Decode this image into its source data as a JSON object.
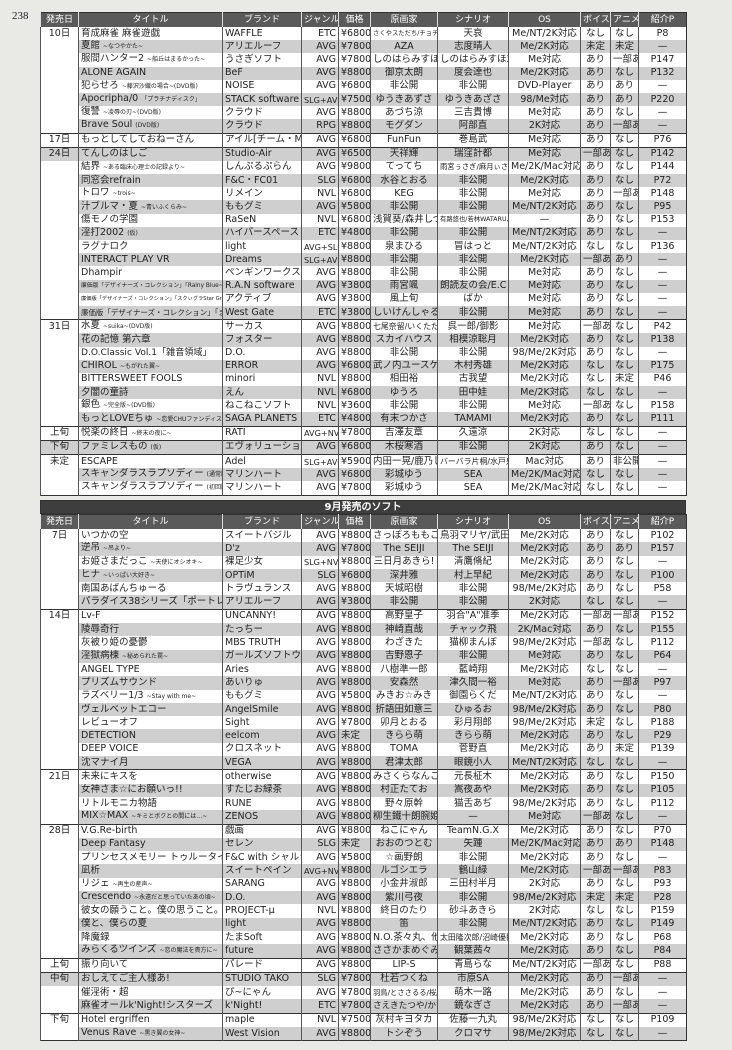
{
  "page_number": "238",
  "columns": [
    "発売日",
    "タイトル",
    "ブランド",
    "ジャンル",
    "価格",
    "原画家",
    "シナリオ",
    "OS",
    "ボイス",
    "アニメ",
    "紹介P"
  ],
  "section2_title": "9月発売のソフト",
  "table1": {
    "rows": [
      [
        "10日",
        "育成麻雀 麻雀遊戯",
        "",
        "WAFFLE",
        "ETC",
        "¥6800",
        "さくやスただち/チョチョポリス",
        "天哀",
        "Me/NT/2K対応",
        "なし",
        "なし",
        "P8"
      ],
      [
        "",
        "夏館",
        "~なつやかた~",
        "アリエルーフ",
        "AVG",
        "¥7800",
        "AZA",
        "志度晴人",
        "Me/2K対応",
        "未定",
        "未定",
        "—"
      ],
      [
        "",
        "服間ハンター2",
        "~船丘はまるかった~",
        "うさぎソフト",
        "AVG",
        "¥7800",
        "しのはらみすほ4号",
        "しのはらみすほ2号",
        "Me対応",
        "あり",
        "一部あり",
        "P147"
      ],
      [
        "",
        "ALONE AGAIN",
        "",
        "BeF",
        "AVG",
        "¥8800",
        "御京太朗",
        "度会達也",
        "Me/2K対応",
        "あり",
        "なし",
        "P132"
      ],
      [
        "",
        "犯らせろ",
        "~藤沢沙織の場合~(DVD版)",
        "NOISE",
        "AVG",
        "¥6800",
        "非公開",
        "非公開",
        "DVD-Player",
        "あり",
        "あり",
        "—"
      ],
      [
        "",
        "Apocripha/0",
        "「プラチナディスク」",
        "STACK software",
        "SLG+AVG",
        "¥7500",
        "ゆうきあずさ",
        "ゆうきあざさ",
        "98/Me対応",
        "あり",
        "あり",
        "P220"
      ],
      [
        "",
        "復讐",
        "~凌辱の刃~(DVD版)",
        "クラウド",
        "AVG",
        "¥8800",
        "あづち涼",
        "三吉貴博",
        "Me対応",
        "あり",
        "なし",
        "—"
      ],
      [
        "",
        "Brave Soul",
        "(DVD版)",
        "クラウド",
        "RPG",
        "¥8800",
        "モグダン",
        "阿部直",
        "2K対応",
        "あり",
        "一部あり",
        "—"
      ],
      [
        "17日",
        "もっとしてしておねーさん",
        "",
        "アイル[チーム・MAXI]",
        "AVG",
        "¥6800",
        "FunFun",
        "巻島武",
        "Me対応",
        "あり",
        "なし",
        "P76"
      ],
      [
        "24日",
        "てんしのはしご",
        "",
        "Studio-Air",
        "AVG",
        "¥6500",
        "天祥輝",
        "瑞窪計都",
        "Me対応",
        "一部あり",
        "なし",
        "P142"
      ],
      [
        "",
        "結界",
        "~ある臨床心理士の記録より~",
        "しんぷるぷらん",
        "AVG",
        "¥9800",
        "てってち",
        "雨宮ぅさぎ/麻月ぃさを,他",
        "Me/2K/Mac対応",
        "あり",
        "なし",
        "P144"
      ],
      [
        "",
        "同窓会refrain",
        "",
        "F&C・FC01",
        "SLG",
        "¥6800",
        "水谷とおる",
        "非公開",
        "Me/2K対応",
        "あり",
        "なし",
        "P72"
      ],
      [
        "",
        "トロワ",
        "~trois~",
        "リメイン",
        "NVL",
        "¥6800",
        "KEG",
        "非公開",
        "Me対応",
        "あり",
        "一部あり",
        "P148"
      ],
      [
        "",
        "汁ブルマ・夏",
        "~青いふくらみ~",
        "ももグミ",
        "AVG",
        "¥5800",
        "非公開",
        "非公開",
        "Me/NT/2K対応",
        "あり",
        "なし",
        "P95"
      ],
      [
        "",
        "傷モノの学園",
        "",
        "RaSeN",
        "NVL",
        "¥6800",
        "浅賀葵/森井しづき",
        "有路悠也/若林WATARU,他",
        "—",
        "あり",
        "なし",
        "P153"
      ],
      [
        "",
        "淫打2002",
        "(仮)",
        "ハイパースペース",
        "ETC",
        "¥4800",
        "非公開",
        "非公開",
        "Me/NT/2K対応",
        "あり",
        "なし",
        "—"
      ],
      [
        "",
        "ラグナロク",
        "",
        "light",
        "AVG+SLG",
        "¥8800",
        "泉まひる",
        "冒はっと",
        "Me/NT/2K対応",
        "なし",
        "なし",
        "P136"
      ],
      [
        "",
        "INTERACT PLAY VR",
        "",
        "Dreams",
        "SLG+AVG",
        "¥8800",
        "非公開",
        "非公開",
        "Me/2K対応",
        "一部あり",
        "あり",
        "—"
      ],
      [
        "",
        "Dhampir",
        "",
        "ペンギンワークス",
        "AVG",
        "¥8800",
        "非公開",
        "非公開",
        "Me対応",
        "あり",
        "なし",
        "—"
      ],
      [
        "",
        "廉価版「デザイナーズ・コレクション」「Rainy Blue~6月の雨~」",
        "",
        "R.A.N software",
        "AVG",
        "¥3800",
        "雨宮颯",
        "朗読友の会/E.C",
        "Me対応",
        "あり",
        "なし",
        "—"
      ],
      [
        "",
        "廉価版「デザイナーズ・コレクション」「スクぃグラStar Graduation」",
        "",
        "アクティブ",
        "AVG",
        "¥3800",
        "風上旬",
        "ばか",
        "Me対応",
        "あり",
        "なし",
        "—"
      ],
      [
        "",
        "廉価版「デザイナーズ・コレクション」「まぁ烈Remix」",
        "",
        "West Gate",
        "ETC",
        "¥3800",
        "しいけんしゃる",
        "非公開",
        "Me対応",
        "あり",
        "なし",
        "—"
      ],
      [
        "31日",
        "水夏",
        "~suika~(DVD版)",
        "サーカス",
        "AVG",
        "¥8800",
        "七尾奈留/いくたたかのん",
        "呉一郎/御影",
        "Me対応",
        "一部あり",
        "なし",
        "P42"
      ],
      [
        "",
        "花の記憶 第六章",
        "",
        "フォスター",
        "AVG",
        "¥8800",
        "スカイハウス",
        "相模涼聡月",
        "Me/2K対応",
        "あり",
        "なし",
        "P138"
      ],
      [
        "",
        "D.O.Classic Vol.1「雑音領域」",
        "",
        "D.O.",
        "AVG",
        "¥8800",
        "非公開",
        "非公開",
        "98/Me/2K対応",
        "あり",
        "なし",
        "—"
      ],
      [
        "",
        "CHIROL",
        "~もがれた翼~",
        "ERROR",
        "AVG",
        "¥6800",
        "武ノ内ユースケ",
        "木村秀雄",
        "Me/2K対応",
        "なし",
        "なし",
        "P175"
      ],
      [
        "",
        "BITTERSWEET FOOLS",
        "",
        "minori",
        "NVL",
        "¥8800",
        "相田裕",
        "古我望",
        "Me/2K対応",
        "なし",
        "未定",
        "P46"
      ],
      [
        "",
        "夕闇の童詩",
        "",
        "えん",
        "NVL",
        "¥6800",
        "ゆうろ",
        "田中娃",
        "Me/2K対応",
        "なし",
        "なし",
        "—"
      ],
      [
        "",
        "銀色",
        "~完全版~(DVD版)",
        "ねこねこソフト",
        "NVL",
        "¥3600",
        "非公開",
        "非公開",
        "Me対応",
        "一部あり",
        "なし",
        "P158"
      ],
      [
        "",
        "もっとLOVEちゅ",
        "~恋愛CHUファンディスク~",
        "SAGA PLANETS",
        "ETC",
        "¥4800",
        "有末つかさ",
        "TAMAMI",
        "Me/2K対応",
        "あり",
        "なし",
        "P111"
      ],
      [
        "上旬",
        "悦楽の終日",
        "~終末の夜に~",
        "RATI",
        "AVG+NVL",
        "¥7800",
        "吉澤友章",
        "久遠涼",
        "2K対応",
        "なし",
        "なし",
        "—"
      ],
      [
        "下旬",
        "ファミレスもの",
        "(仮)",
        "エヴォリューション",
        "AVG",
        "¥6800",
        "木桜寒酒",
        "非公開",
        "2K対応",
        "あり",
        "なし",
        "—"
      ],
      [
        "未定",
        "ESCAPE",
        "",
        "Adel",
        "SLG+AVG",
        "¥5900",
        "内田一晃/鹿乃しうこ",
        "バーバラ片桐/水戸泉,他",
        "Mac対応",
        "あり",
        "非公開",
        "—"
      ],
      [
        "",
        "スキャンダラスラプソディー",
        "(通常版)",
        "マリンハート",
        "AVG",
        "¥6800",
        "彩城ゆう",
        "SEA",
        "Me/2K/Mac対応",
        "なし",
        "なし",
        "—"
      ],
      [
        "",
        "スキャンダラスラプソディー",
        "(初回版)",
        "マリンハート",
        "AVG",
        "¥7800",
        "彩城ゆう",
        "SEA",
        "Me/2K/Mac対応",
        "なし",
        "なし",
        "—"
      ]
    ]
  },
  "table2": {
    "rows": [
      [
        "7日",
        "いつかの空",
        "",
        "スイートバジル",
        "AVG",
        "¥8800",
        "さっぽろももこ",
        "鳥羽マリヤ/武田崇信",
        "Me/2K対応",
        "あり",
        "なし",
        "P102"
      ],
      [
        "",
        "逆吊",
        "~吊より~",
        "D'z",
        "AVG",
        "¥7800",
        "The SEIJI",
        "The SEIJI",
        "Me/2K対応",
        "あり",
        "あり",
        "P157"
      ],
      [
        "",
        "お姫さまだっこ",
        "~天使にオシオキ~",
        "裸足少女",
        "SLG+NVL",
        "¥8800",
        "三日月あきら!",
        "清鷹脩紀",
        "Me/2K対応",
        "あり",
        "なし",
        "—"
      ],
      [
        "",
        "ヒナ",
        "~いっぱい大好き~",
        "OPTiM",
        "SLG",
        "¥6800",
        "深井雅",
        "村上早紀",
        "Me/2K対応",
        "あり",
        "なし",
        "P100"
      ],
      [
        "",
        "南国あばんちゅーる",
        "",
        "トラヴュランス",
        "AVG",
        "¥8800",
        "天城昭樹",
        "非公開",
        "98/Me/2K対応",
        "あり",
        "なし",
        "P58"
      ],
      [
        "",
        "パラダイス38シリーズ「ポートレイト」",
        "",
        "アリエルーフ",
        "AVG",
        "¥3800",
        "非公開",
        "非公開",
        "2K対応",
        "なし",
        "なし",
        "—"
      ],
      [
        "14日",
        "Lv-F",
        "",
        "UNCANNY!",
        "AVG",
        "¥8800",
        "高野皇子",
        "羽合\"A\"准季",
        "Me/2K対応",
        "一部あり",
        "一部あり",
        "P152"
      ],
      [
        "",
        "陵辱奇行",
        "",
        "たっちー",
        "AVG",
        "¥8800",
        "神崎直哉",
        "チャック飛",
        "2K/Mac対応",
        "あり",
        "なし",
        "P155"
      ],
      [
        "",
        "灰被り姫の憂鬱",
        "",
        "MBS TRUTH",
        "AVG",
        "¥8800",
        "わざきた",
        "猫柳まんぼ",
        "98/Me/2K対応",
        "一部あり",
        "なし",
        "P112"
      ],
      [
        "",
        "淫獄病棟",
        "~秘められた罠~",
        "ガールズソフトウェア",
        "AVG",
        "¥8800",
        "吉野恩子",
        "非公開",
        "Me対応",
        "あり",
        "なし",
        "P64"
      ],
      [
        "",
        "ANGEL TYPE",
        "",
        "Aries",
        "AVG",
        "¥8800",
        "八樹準一郎",
        "藍崎翔",
        "Me/2K対応",
        "なし",
        "なし",
        "—"
      ],
      [
        "",
        "プリズムサウンド",
        "",
        "あいりゅ",
        "AVG",
        "¥8800",
        "安森然",
        "津久間一裕",
        "Me対応",
        "あり",
        "一部あり",
        "P97"
      ],
      [
        "",
        "ラズベリー1/3",
        "~Stay with me~",
        "ももグミ",
        "AVG",
        "¥5800",
        "みきお☆みき",
        "御園らくだ",
        "Me/NT/2K対応",
        "あり",
        "なし",
        "—"
      ],
      [
        "",
        "ヴェルベットエコー",
        "",
        "AngelSmile",
        "AVG",
        "¥8800",
        "折語田如意三",
        "ひゅるお",
        "98/Me/2K対応",
        "あり",
        "なし",
        "P80"
      ],
      [
        "",
        "レビューオフ",
        "",
        "Sight",
        "AVG",
        "¥7800",
        "卯月とおる",
        "彩月翔郎",
        "98/Me/2K対応",
        "未定",
        "なし",
        "P188"
      ],
      [
        "",
        "DETECTION",
        "",
        "eelcom",
        "AVG",
        "未定",
        "きらら萌",
        "きらら萌",
        "Me/2K対応",
        "あり",
        "なし",
        "P29"
      ],
      [
        "",
        "DEEP VOICE",
        "",
        "クロスネット",
        "AVG",
        "¥8800",
        "TOMA",
        "菅野直",
        "Me/2K対応",
        "あり",
        "未定",
        "P139"
      ],
      [
        "",
        "沈マナイ月",
        "",
        "VEGA",
        "AVG",
        "¥8800",
        "君津太郎",
        "眼鏡小人",
        "Me/NT/2K対応",
        "なし",
        "なし",
        "—"
      ],
      [
        "21日",
        "未来にキスを",
        "",
        "otherwise",
        "AVG",
        "¥8800",
        "みさくらなんこつ",
        "元長柾木",
        "Me/2K対応",
        "あり",
        "なし",
        "P150"
      ],
      [
        "",
        "女神さま☆にお願いっ!!",
        "",
        "すたじお緑茶",
        "AVG",
        "¥8800",
        "村正たてお",
        "嵩夜あや",
        "Me/2K対応",
        "あり",
        "なし",
        "P105"
      ],
      [
        "",
        "リトルモニカ物語",
        "",
        "RUNE",
        "AVG",
        "¥8800",
        "野々原幹",
        "猫舌あぢ",
        "98/Me/2K対応",
        "あり",
        "なし",
        "P112"
      ],
      [
        "",
        "MIX☆MAX",
        "~キミとボクとの間には…~",
        "ZENOS",
        "AVG",
        "¥8800",
        "柳生鐵十朗腕姫",
        "—",
        "Me対応",
        "一部あり",
        "なし",
        "—"
      ],
      [
        "28日",
        "V.G.Re-birth",
        "",
        "戯画",
        "AVG",
        "¥8800",
        "ねこにゃん",
        "TeamN.G.X",
        "Me/2K対応",
        "あり",
        "なし",
        "P70"
      ],
      [
        "",
        "Deep Fantasy",
        "",
        "セレン",
        "SLG",
        "未定",
        "おおのつとむ",
        "矢踵",
        "Me/2K/Mac対応",
        "あり",
        "あり",
        "P148"
      ],
      [
        "",
        "プリンセスメモリー トゥルータイピング",
        "",
        "F&C with シャルラク",
        "AVG",
        "¥5800",
        "☆画野朗",
        "非公開",
        "Me/2K対応",
        "あり",
        "なし",
        "—"
      ],
      [
        "",
        "凪析",
        "",
        "スイートペイン",
        "AVG+NVL",
        "¥8800",
        "ルゴシエラ",
        "鶴山緑",
        "Me/2K対応",
        "一部あり",
        "一部あり",
        "P83"
      ],
      [
        "",
        "リジェ",
        "~再生の産声~",
        "SARANG",
        "AVG",
        "¥8800",
        "小金井淑郎",
        "三田村半月",
        "2K対応",
        "あり",
        "なし",
        "P93"
      ],
      [
        "",
        "Crescendo",
        "~永遠だと思っていたあの頃~",
        "D.O.",
        "AVG",
        "¥8800",
        "紫川弓夜",
        "非公開",
        "98/Me/2K対応",
        "未定",
        "未定",
        "P28"
      ],
      [
        "",
        "彼女の願うこと。僕の思うこと。",
        "",
        "PROJECT-μ",
        "NVL",
        "¥8800",
        "終日のたり",
        "砂斗あきら",
        "2K対応",
        "なし",
        "なし",
        "P159"
      ],
      [
        "",
        "僕と、僕らの夏",
        "",
        "light",
        "AVG",
        "¥8800",
        "笛",
        "非公開",
        "Me/NT/2K対応",
        "あり",
        "なし",
        "P149"
      ],
      [
        "",
        "降魔録",
        "",
        "たまSoft",
        "AVG",
        "¥8800",
        "N.O.茶々丸、他",
        "太田隆次郎/沼崎優臣,他",
        "Me/2K対応",
        "あり",
        "なし",
        "P68"
      ],
      [
        "",
        "みらくるツインズ",
        "~恋の魔法を貴方に~",
        "future",
        "AVG",
        "¥8800",
        "ささかまめぐみ",
        "観葉茜々",
        "Me/2K対応",
        "あり",
        "なし",
        "P84"
      ],
      [
        "上旬",
        "振り向いて",
        "",
        "パレード",
        "AVG",
        "¥8800",
        "LIP-S",
        "青島らな",
        "Me/NT/2K対応",
        "一部あり",
        "なし",
        "P88"
      ],
      [
        "中旬",
        "おしえてご主人様あ!",
        "",
        "STUDIO TAKO",
        "SLG",
        "¥7800",
        "杜若つくね",
        "市原SA",
        "Me/2K対応",
        "あり",
        "一部あり",
        "—"
      ],
      [
        "",
        "催淫術・超",
        "",
        "ぴ~にゃん",
        "AVG",
        "¥7800",
        "羽鳥/とささるる/桜/吉田",
        "萌木一路",
        "Me/2K対応",
        "あり",
        "なし",
        "—"
      ],
      [
        "",
        "麻雀オールk'Night!シスターズ",
        "",
        "k'Night!",
        "ETC",
        "¥7800",
        "さえきたつや/かずみ晶",
        "鏡なぎさ",
        "Me/2K対応",
        "あり",
        "一部あり",
        "—"
      ],
      [
        "下旬",
        "Hotel ergriffen",
        "",
        "maple",
        "NVL",
        "¥7500",
        "灰村キヨタカ",
        "佐藤一九丸",
        "98/Me/2K対応",
        "なし",
        "なし",
        "P109"
      ],
      [
        "",
        "Venus Rave",
        "~黒き翼の女神~",
        "West Vision",
        "AVG",
        "¥8800",
        "トシぞう",
        "クロマサ",
        "98/Me/2K対応",
        "なし",
        "なし",
        "—"
      ]
    ]
  }
}
